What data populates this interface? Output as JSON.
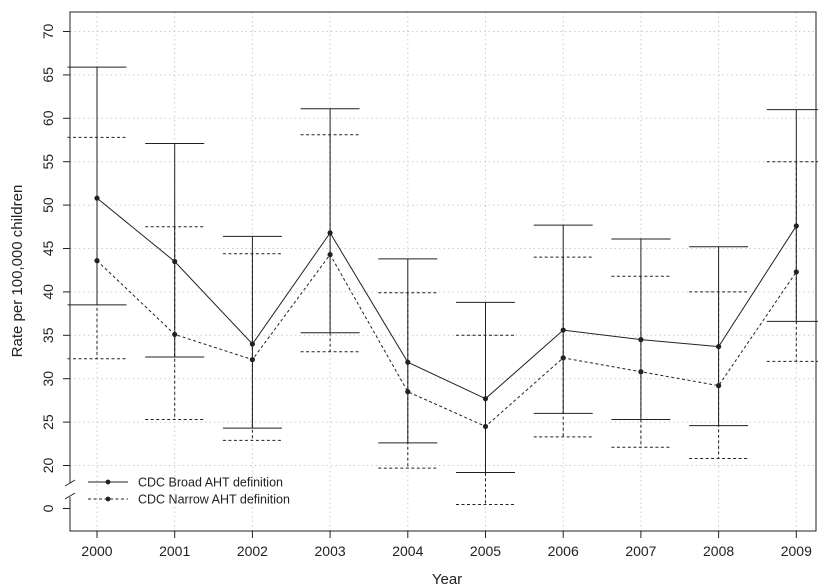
{
  "chart_data": {
    "type": "line",
    "title": "",
    "xlabel": "Year",
    "ylabel": "Rate per 100,000 children",
    "categories": [
      "2000",
      "2001",
      "2002",
      "2003",
      "2004",
      "2005",
      "2006",
      "2007",
      "2008",
      "2009"
    ],
    "ylim": [
      20,
      70
    ],
    "y_ticks": [
      "20",
      "25",
      "30",
      "35",
      "40",
      "45",
      "50",
      "55",
      "60",
      "65",
      "70"
    ],
    "y_axis_break": true,
    "y_break_tick": "0",
    "grid": true,
    "legend_position": "bottom-left",
    "series": [
      {
        "name": "CDC Broad AHT definition",
        "line_style": "solid",
        "values": [
          50.8,
          43.5,
          34.0,
          46.8,
          31.9,
          27.7,
          35.6,
          34.5,
          33.7,
          47.6
        ],
        "lower": [
          38.5,
          32.5,
          24.3,
          35.3,
          22.6,
          19.2,
          26.0,
          25.3,
          24.6,
          36.6
        ],
        "upper": [
          65.9,
          57.1,
          46.4,
          61.1,
          43.8,
          38.8,
          47.7,
          46.1,
          45.2,
          61.0
        ]
      },
      {
        "name": "CDC Narrow AHT definition",
        "line_style": "dashed",
        "values": [
          43.6,
          35.1,
          32.2,
          44.3,
          28.5,
          24.5,
          32.4,
          30.8,
          29.2,
          42.3
        ],
        "lower": [
          32.3,
          25.3,
          22.9,
          33.1,
          19.7,
          15.5,
          23.3,
          22.1,
          20.8,
          32.0
        ],
        "upper": [
          57.8,
          47.5,
          44.4,
          58.1,
          39.9,
          35.0,
          44.0,
          41.8,
          40.0,
          55.0
        ]
      }
    ],
    "colors": {
      "line": "#222222",
      "grid": "#cccccc",
      "background": "#ffffff"
    }
  }
}
